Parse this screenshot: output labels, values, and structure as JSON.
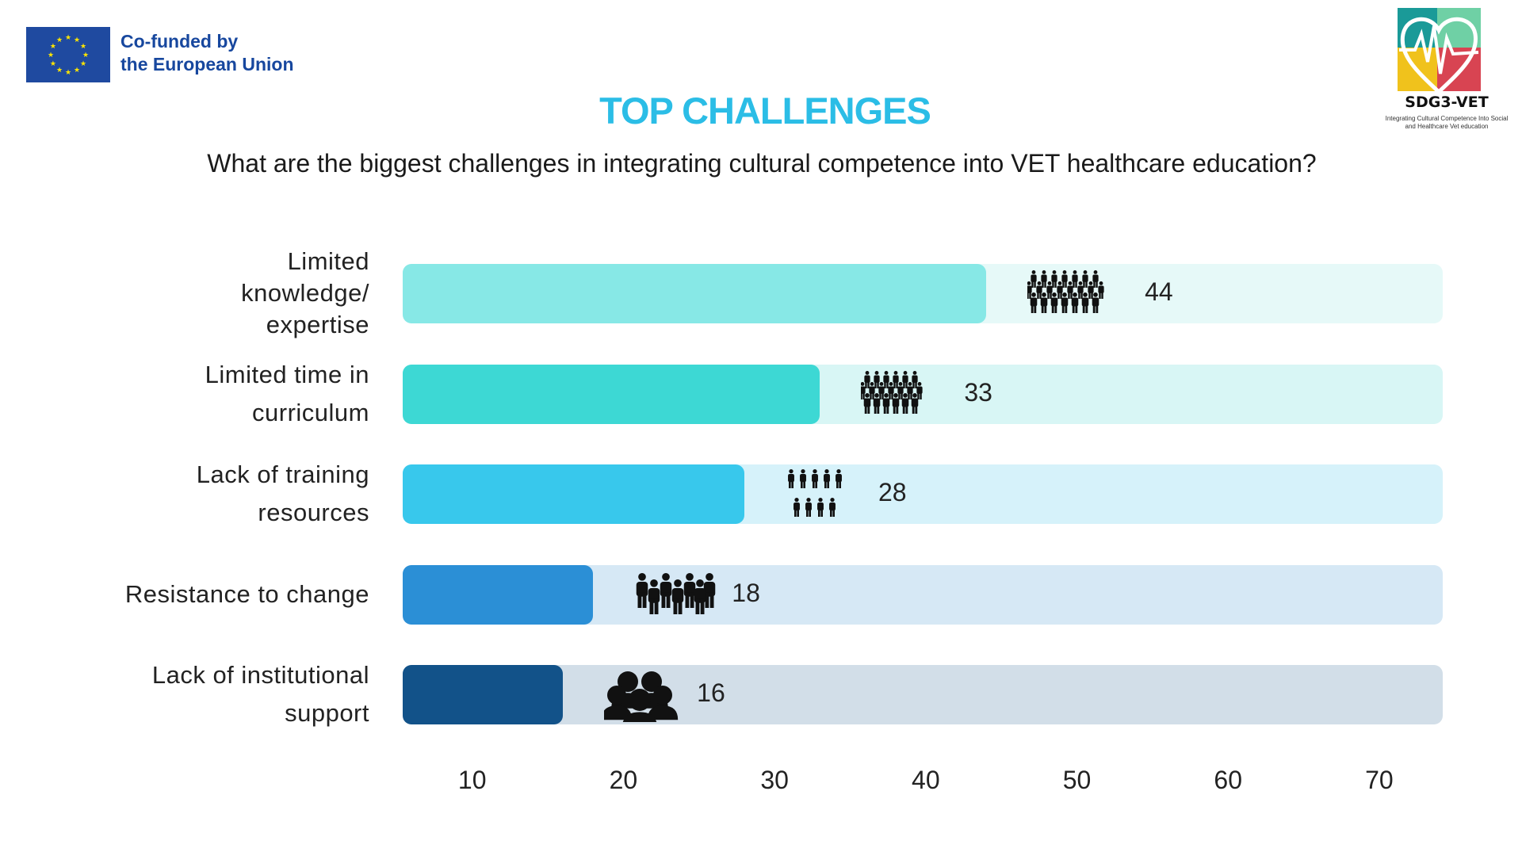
{
  "header": {
    "funder_text_line1": "Co-funded by",
    "funder_text_line2": "the European Union",
    "logo_title": "SDG3-VET",
    "logo_subtitle_line1": "Integrating Cultural Competence Into Social",
    "logo_subtitle_line2": "and Healthcare Vet education"
  },
  "chart_data": {
    "type": "bar",
    "orientation": "horizontal",
    "title": "TOP CHALLENGES",
    "subtitle": "What are the biggest challenges in integrating cultural competence into VET healthcare education?",
    "categories": [
      "Limited knowledge/ expertise",
      "Limited time in curriculum",
      "Lack of training resources",
      "Resistance to change",
      "Lack of institutional support"
    ],
    "label_lines": [
      [
        "Limited",
        "knowledge/",
        "expertise"
      ],
      [
        "Limited time in",
        "curriculum"
      ],
      [
        "Lack of training",
        "resources"
      ],
      [
        "Resistance to change"
      ],
      [
        "Lack of institutional",
        "support"
      ]
    ],
    "values": [
      44,
      33,
      28,
      18,
      16
    ],
    "value_labels": [
      "44",
      "33",
      "28",
      "18",
      "16"
    ],
    "colors": [
      "#87e8e6",
      "#3dd8d4",
      "#38c8ec",
      "#2b8fd6",
      "#125289"
    ],
    "track_colors": [
      "#e6f9f8",
      "#d8f6f5",
      "#d6f2fa",
      "#d6e8f5",
      "#d2dee8"
    ],
    "x_ticks": [
      "10",
      "20",
      "30",
      "40",
      "50",
      "60",
      "70"
    ],
    "xlim": [
      5.4,
      74
    ],
    "icon": "people-group-icon",
    "xlabel": "",
    "ylabel": "",
    "grid": false
  },
  "colors": {
    "title": "#2bbde6",
    "eu_blue": "#1f4aa0",
    "eu_text": "#17479e"
  }
}
